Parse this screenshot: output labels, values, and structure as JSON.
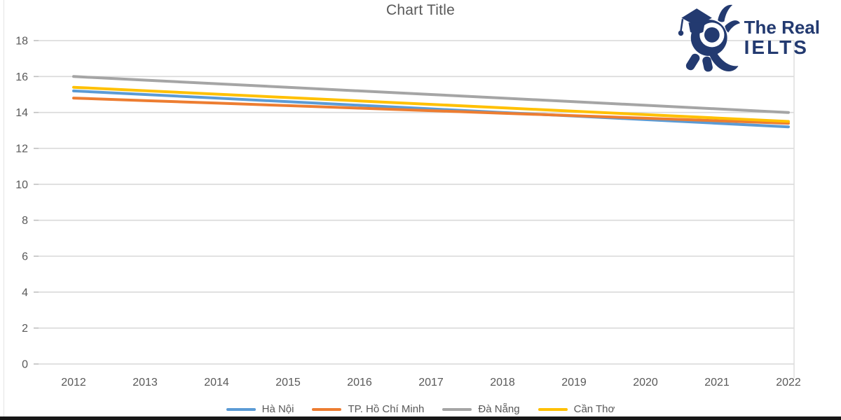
{
  "chart": {
    "title": "Chart Title"
  },
  "logo": {
    "line1": "The Real",
    "line2": "IELTS",
    "brand_color": "#233a70",
    "mascot_icon": "octopus-graduate-icon"
  },
  "colors": {
    "gridline": "#d9d9d9",
    "tick": "#bfbfbf",
    "axis_text": "#595959",
    "plot_right_border": "#dcdcdc",
    "bottom_bar": "#161616"
  },
  "chart_data": {
    "type": "line",
    "title": "Chart Title",
    "x": [
      2012,
      2013,
      2014,
      2015,
      2016,
      2017,
      2018,
      2019,
      2020,
      2021,
      2022
    ],
    "series": [
      {
        "name": "Hà Nội",
        "color": "#5b9bd5",
        "values": [
          15.2,
          15.0,
          14.8,
          14.6,
          14.4,
          14.2,
          14.0,
          13.8,
          13.6,
          13.4,
          13.2
        ]
      },
      {
        "name": "TP. Hồ Chí Minh",
        "color": "#ed7d31",
        "values": [
          14.8,
          14.66,
          14.52,
          14.38,
          14.24,
          14.1,
          13.96,
          13.82,
          13.68,
          13.54,
          13.4
        ]
      },
      {
        "name": "Đà Nẵng",
        "color": "#a5a5a5",
        "values": [
          16.0,
          15.8,
          15.6,
          15.4,
          15.2,
          15.0,
          14.8,
          14.6,
          14.4,
          14.2,
          14.0
        ]
      },
      {
        "name": "Cần Thơ",
        "color": "#ffc000",
        "values": [
          15.4,
          15.21,
          15.02,
          14.83,
          14.64,
          14.45,
          14.26,
          14.07,
          13.88,
          13.69,
          13.5
        ]
      }
    ],
    "xlabel": "",
    "ylabel": "",
    "ylim": [
      0,
      18
    ],
    "ytick_step": 2,
    "grid": true,
    "legend_position": "bottom"
  }
}
